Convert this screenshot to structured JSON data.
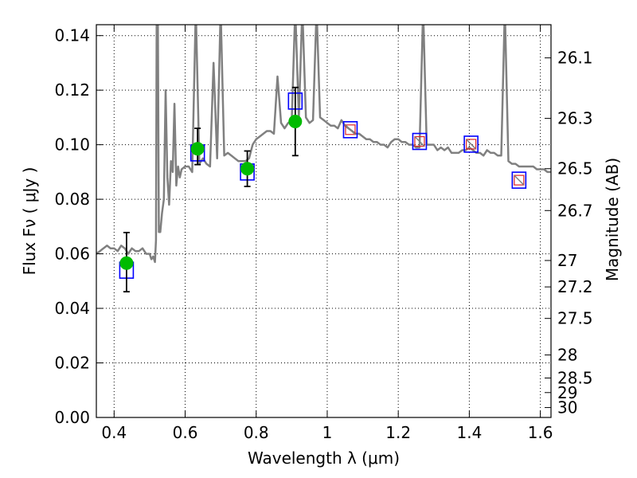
{
  "chart_data": {
    "type": "scatter",
    "xlabel": "Wavelength  λ (μm)",
    "ylabel": "Flux  Fν  ( μJy )",
    "y2label": "Magnitude (AB)",
    "xlim": [
      0.35,
      1.63
    ],
    "ylim": [
      0.0,
      0.144
    ],
    "grid": true,
    "x_ticks": [
      {
        "value": 0.4,
        "label": "0.4"
      },
      {
        "value": 0.6,
        "label": "0.6"
      },
      {
        "value": 0.8,
        "label": "0.8"
      },
      {
        "value": 1.0,
        "label": "1"
      },
      {
        "value": 1.2,
        "label": "1.2"
      },
      {
        "value": 1.4,
        "label": "1.4"
      },
      {
        "value": 1.6,
        "label": "1.6"
      }
    ],
    "y_ticks": [
      {
        "value": 0.0,
        "label": "0.00"
      },
      {
        "value": 0.02,
        "label": "0.02"
      },
      {
        "value": 0.04,
        "label": "0.04"
      },
      {
        "value": 0.06,
        "label": "0.06"
      },
      {
        "value": 0.08,
        "label": "0.08"
      },
      {
        "value": 0.1,
        "label": "0.10"
      },
      {
        "value": 0.12,
        "label": "0.12"
      },
      {
        "value": 0.14,
        "label": "0.14"
      }
    ],
    "y2_ticks": [
      {
        "value": 26.1,
        "label": "26.1"
      },
      {
        "value": 26.3,
        "label": "26.3"
      },
      {
        "value": 26.5,
        "label": "26.5"
      },
      {
        "value": 26.7,
        "label": "26.7"
      },
      {
        "value": 27.0,
        "label": "27"
      },
      {
        "value": 27.2,
        "label": "27.2"
      },
      {
        "value": 27.5,
        "label": "27.5"
      },
      {
        "value": 28.0,
        "label": "28"
      },
      {
        "value": 28.5,
        "label": "28.5"
      },
      {
        "value": 29.0,
        "label": "29"
      },
      {
        "value": 30.0,
        "label": "30"
      }
    ],
    "colors": {
      "model": "#808080",
      "observed": "#00bb00",
      "model_photometry": "#0000ff",
      "synthetic": "#dd2222",
      "errorbar": "#000000"
    },
    "model_spectrum": {
      "x": [
        0.35,
        0.36,
        0.37,
        0.38,
        0.39,
        0.4,
        0.41,
        0.42,
        0.43,
        0.44,
        0.45,
        0.46,
        0.47,
        0.48,
        0.49,
        0.5,
        0.505,
        0.51,
        0.515,
        0.518,
        0.52,
        0.523,
        0.526,
        0.53,
        0.535,
        0.54,
        0.545,
        0.55,
        0.555,
        0.56,
        0.565,
        0.57,
        0.575,
        0.58,
        0.585,
        0.59,
        0.6,
        0.61,
        0.62,
        0.63,
        0.64,
        0.65,
        0.66,
        0.67,
        0.68,
        0.69,
        0.7,
        0.71,
        0.72,
        0.73,
        0.74,
        0.75,
        0.76,
        0.77,
        0.78,
        0.79,
        0.8,
        0.81,
        0.82,
        0.83,
        0.84,
        0.85,
        0.86,
        0.87,
        0.88,
        0.89,
        0.9,
        0.91,
        0.92,
        0.93,
        0.94,
        0.95,
        0.96,
        0.97,
        0.98,
        0.99,
        1.0,
        1.01,
        1.02,
        1.03,
        1.04,
        1.05,
        1.06,
        1.07,
        1.08,
        1.09,
        1.1,
        1.11,
        1.12,
        1.13,
        1.14,
        1.15,
        1.16,
        1.17,
        1.18,
        1.19,
        1.2,
        1.21,
        1.22,
        1.23,
        1.24,
        1.25,
        1.26,
        1.27,
        1.28,
        1.29,
        1.3,
        1.31,
        1.32,
        1.33,
        1.34,
        1.35,
        1.36,
        1.37,
        1.38,
        1.39,
        1.4,
        1.41,
        1.42,
        1.43,
        1.44,
        1.45,
        1.46,
        1.47,
        1.48,
        1.49,
        1.5,
        1.51,
        1.52,
        1.53,
        1.54,
        1.55,
        1.56,
        1.57,
        1.58,
        1.59,
        1.6,
        1.61,
        1.62,
        1.63
      ],
      "y": [
        0.06,
        0.061,
        0.062,
        0.063,
        0.062,
        0.062,
        0.061,
        0.063,
        0.062,
        0.06,
        0.062,
        0.061,
        0.061,
        0.062,
        0.06,
        0.06,
        0.058,
        0.059,
        0.057,
        0.065,
        0.15,
        0.15,
        0.068,
        0.068,
        0.075,
        0.08,
        0.12,
        0.088,
        0.078,
        0.094,
        0.09,
        0.115,
        0.085,
        0.092,
        0.088,
        0.091,
        0.092,
        0.092,
        0.09,
        0.15,
        0.093,
        0.095,
        0.093,
        0.092,
        0.13,
        0.095,
        0.15,
        0.096,
        0.097,
        0.096,
        0.095,
        0.094,
        0.094,
        0.094,
        0.095,
        0.1,
        0.102,
        0.103,
        0.104,
        0.105,
        0.105,
        0.104,
        0.125,
        0.108,
        0.106,
        0.108,
        0.109,
        0.15,
        0.11,
        0.15,
        0.11,
        0.108,
        0.109,
        0.15,
        0.11,
        0.109,
        0.108,
        0.107,
        0.107,
        0.106,
        0.109,
        0.107,
        0.106,
        0.105,
        0.104,
        0.104,
        0.103,
        0.102,
        0.102,
        0.101,
        0.101,
        0.1,
        0.1,
        0.099,
        0.101,
        0.102,
        0.102,
        0.101,
        0.101,
        0.1,
        0.1,
        0.099,
        0.099,
        0.15,
        0.1,
        0.1,
        0.1,
        0.098,
        0.099,
        0.098,
        0.099,
        0.097,
        0.097,
        0.097,
        0.098,
        0.098,
        0.099,
        0.098,
        0.097,
        0.097,
        0.096,
        0.098,
        0.097,
        0.097,
        0.096,
        0.096,
        0.15,
        0.094,
        0.093,
        0.093,
        0.092,
        0.092,
        0.092,
        0.092,
        0.092,
        0.091,
        0.091,
        0.091,
        0.09,
        0.09
      ]
    },
    "observed_points": [
      {
        "x": 0.435,
        "y": 0.0566,
        "yerr_low": 0.0105,
        "yerr_high": 0.0112
      },
      {
        "x": 0.635,
        "y": 0.0985,
        "yerr_low": 0.0058,
        "yerr_high": 0.0075
      },
      {
        "x": 0.775,
        "y": 0.0912,
        "yerr_low": 0.0065,
        "yerr_high": 0.0065
      },
      {
        "x": 0.91,
        "y": 0.1085,
        "yerr_low": 0.0125,
        "yerr_high": 0.0125
      }
    ],
    "model_photometry": [
      {
        "x": 0.435,
        "y": 0.054
      },
      {
        "x": 0.635,
        "y": 0.097
      },
      {
        "x": 0.775,
        "y": 0.09
      },
      {
        "x": 0.91,
        "y": 0.116
      },
      {
        "x": 1.065,
        "y": 0.1055
      },
      {
        "x": 1.26,
        "y": 0.1012
      },
      {
        "x": 1.405,
        "y": 0.1002
      },
      {
        "x": 1.54,
        "y": 0.087
      }
    ],
    "synthetic_photometry": [
      {
        "x": 1.065,
        "y": 0.1055
      },
      {
        "x": 1.26,
        "y": 0.1012
      },
      {
        "x": 1.405,
        "y": 0.1002
      },
      {
        "x": 1.54,
        "y": 0.087
      }
    ]
  }
}
